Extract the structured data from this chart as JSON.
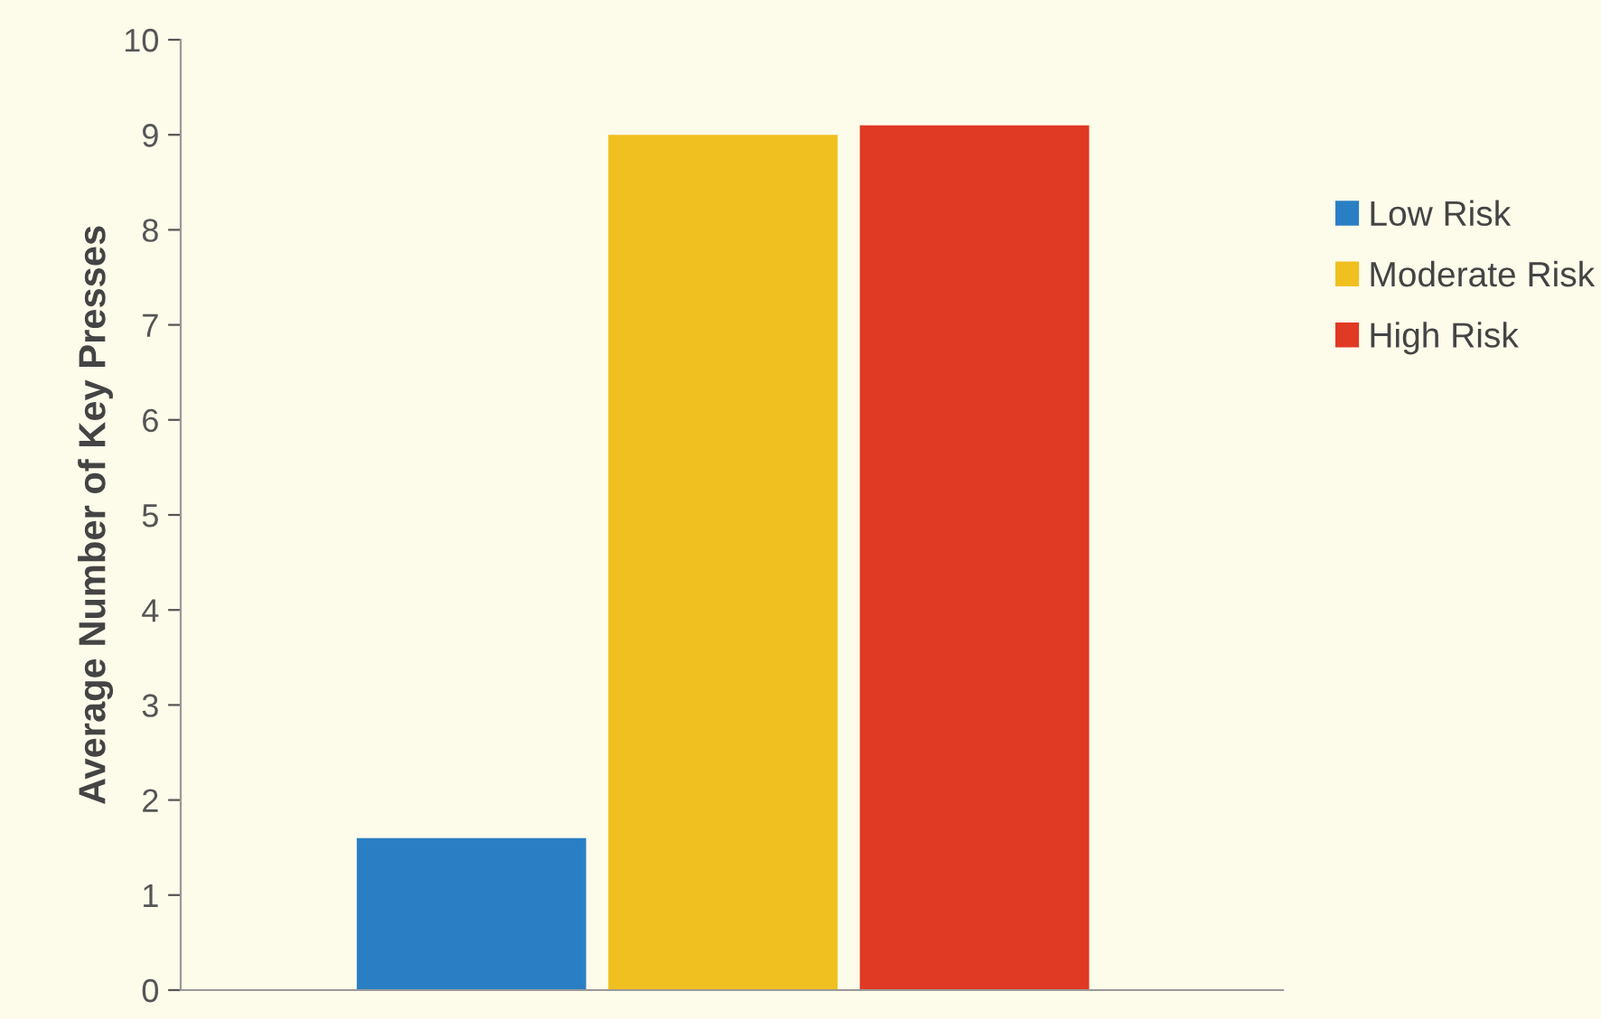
{
  "chart_data": {
    "type": "bar",
    "ylabel": "Average Number of Key Presses",
    "categories": [
      null
    ],
    "series": [
      {
        "name": "Low Risk",
        "color": "#2a7fc4",
        "values": [
          1.6
        ]
      },
      {
        "name": "Moderate Risk",
        "color": "#f0c020",
        "values": [
          9.0
        ]
      },
      {
        "name": "High Risk",
        "color": "#e03a25",
        "values": [
          9.1
        ]
      }
    ],
    "ylim": [
      0,
      10
    ],
    "yticks": [
      0,
      1,
      2,
      3,
      4,
      5,
      6,
      7,
      8,
      9,
      10
    ],
    "grid": false,
    "legend": "right"
  }
}
